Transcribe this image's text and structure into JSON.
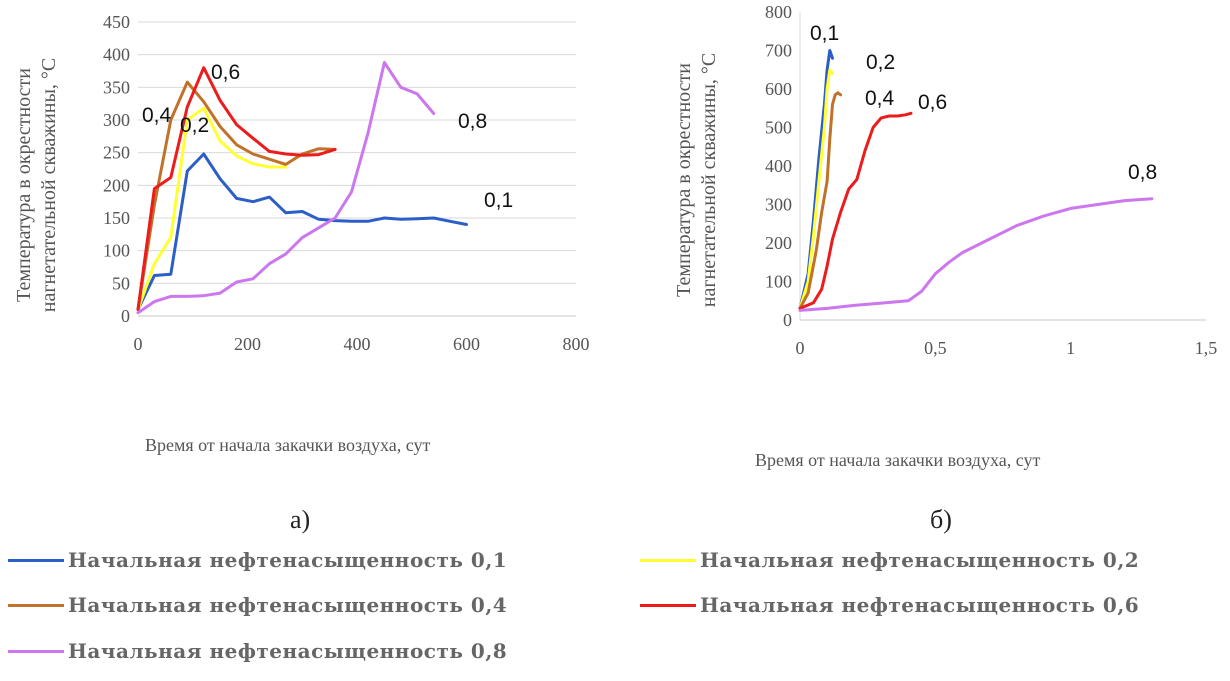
{
  "chart_data": [
    {
      "id": "a",
      "type": "line",
      "ylabel_lines": [
        "Температура в окрестности",
        "нагнетательной скважины, °C"
      ],
      "xlabel": "Время от начала закачки воздуха, сут",
      "xlim": [
        0,
        800
      ],
      "ylim": [
        0,
        450
      ],
      "xticks": [
        0,
        200,
        400,
        600,
        800
      ],
      "yticks": [
        0,
        50,
        100,
        150,
        200,
        250,
        300,
        350,
        400,
        450
      ],
      "grid": "horizontal",
      "series": [
        {
          "color": "#2b5ec6",
          "label": "0,1",
          "x": [
            0,
            30,
            60,
            90,
            120,
            150,
            180,
            210,
            240,
            270,
            300,
            330,
            360,
            390,
            420,
            450,
            480,
            510,
            540,
            570,
            600
          ],
          "y": [
            10,
            62,
            64,
            222,
            248,
            210,
            180,
            175,
            182,
            158,
            160,
            148,
            146,
            145,
            145,
            150,
            148,
            149,
            150,
            145,
            140
          ]
        },
        {
          "color": "#ffff33",
          "label": "0,2",
          "x": [
            0,
            30,
            60,
            90,
            120,
            150,
            180,
            210,
            240,
            270
          ],
          "y": [
            10,
            80,
            120,
            300,
            318,
            268,
            245,
            233,
            228,
            228
          ]
        },
        {
          "color": "#c0722a",
          "label": "0,4",
          "x": [
            0,
            30,
            60,
            90,
            120,
            150,
            180,
            210,
            240,
            270,
            300,
            330,
            360
          ],
          "y": [
            10,
            170,
            300,
            358,
            328,
            290,
            262,
            248,
            240,
            232,
            248,
            256,
            255
          ]
        },
        {
          "color": "#ec1c1c",
          "label": "0,6",
          "x": [
            0,
            30,
            60,
            90,
            120,
            150,
            180,
            210,
            240,
            270,
            300,
            330,
            360
          ],
          "y": [
            10,
            195,
            212,
            320,
            380,
            330,
            293,
            272,
            252,
            248,
            246,
            247,
            255
          ]
        },
        {
          "color": "#cc77ee",
          "label": "0,8",
          "x": [
            0,
            30,
            60,
            90,
            120,
            150,
            180,
            210,
            240,
            270,
            300,
            330,
            360,
            390,
            420,
            450,
            480,
            510,
            540
          ],
          "y": [
            5,
            22,
            30,
            30,
            31,
            35,
            52,
            57,
            80,
            95,
            120,
            135,
            150,
            190,
            280,
            388,
            350,
            340,
            310
          ]
        }
      ]
    },
    {
      "id": "b",
      "type": "line",
      "ylabel_lines": [
        "Температура в окрестности",
        "нагнетательной скважины, °C"
      ],
      "xlabel": "Время от начала закачки воздуха, сут",
      "xlim": [
        0,
        1.5
      ],
      "ylim": [
        0,
        800
      ],
      "xticks": [
        0,
        0.5,
        1,
        1.5
      ],
      "xtick_labels": [
        "0",
        "0,5",
        "1",
        "1,5"
      ],
      "yticks": [
        0,
        100,
        200,
        300,
        400,
        500,
        600,
        700,
        800
      ],
      "grid": "none",
      "series": [
        {
          "color": "#2b5ec6",
          "label": "0,1",
          "x": [
            0,
            0.03,
            0.05,
            0.07,
            0.09,
            0.1,
            0.11,
            0.12
          ],
          "y": [
            30,
            120,
            260,
            420,
            560,
            650,
            700,
            680
          ]
        },
        {
          "color": "#ffff33",
          "label": "0,2",
          "x": [
            0,
            0.03,
            0.05,
            0.07,
            0.09,
            0.1,
            0.11,
            0.12
          ],
          "y": [
            30,
            100,
            220,
            360,
            500,
            600,
            650,
            640
          ]
        },
        {
          "color": "#c0722a",
          "label": "0,4",
          "x": [
            0,
            0.03,
            0.06,
            0.08,
            0.1,
            0.11,
            0.12,
            0.13,
            0.14,
            0.15
          ],
          "y": [
            30,
            70,
            180,
            280,
            360,
            470,
            560,
            585,
            590,
            585
          ]
        },
        {
          "color": "#ec1c1c",
          "label": "0,6",
          "x": [
            0,
            0.05,
            0.08,
            0.1,
            0.12,
            0.15,
            0.18,
            0.21,
            0.24,
            0.27,
            0.3,
            0.33,
            0.36,
            0.39,
            0.41
          ],
          "y": [
            30,
            45,
            80,
            140,
            210,
            280,
            340,
            365,
            440,
            500,
            525,
            530,
            530,
            533,
            537
          ]
        },
        {
          "color": "#cc77ee",
          "label": "0,8",
          "x": [
            0,
            0.1,
            0.2,
            0.3,
            0.4,
            0.45,
            0.5,
            0.55,
            0.6,
            0.7,
            0.8,
            0.9,
            1.0,
            1.1,
            1.2,
            1.3
          ],
          "y": [
            25,
            30,
            38,
            44,
            50,
            75,
            120,
            150,
            175,
            210,
            245,
            270,
            290,
            300,
            310,
            315
          ]
        }
      ]
    }
  ],
  "panel_captions": [
    "а)",
    "б)"
  ],
  "legend": [
    {
      "label": "Начальная нефтенасыщенность 0,1",
      "color": "#2b5ec6"
    },
    {
      "label": "Начальная нефтенасыщенность 0,2",
      "color": "#ffff33"
    },
    {
      "label": "Начальная нефтенасыщенность 0,4",
      "color": "#c0722a"
    },
    {
      "label": "Начальная нефтенасыщенность 0,6",
      "color": "#ec1c1c"
    },
    {
      "label": "Начальная нефтенасыщенность 0,8",
      "color": "#cc77ee"
    }
  ]
}
